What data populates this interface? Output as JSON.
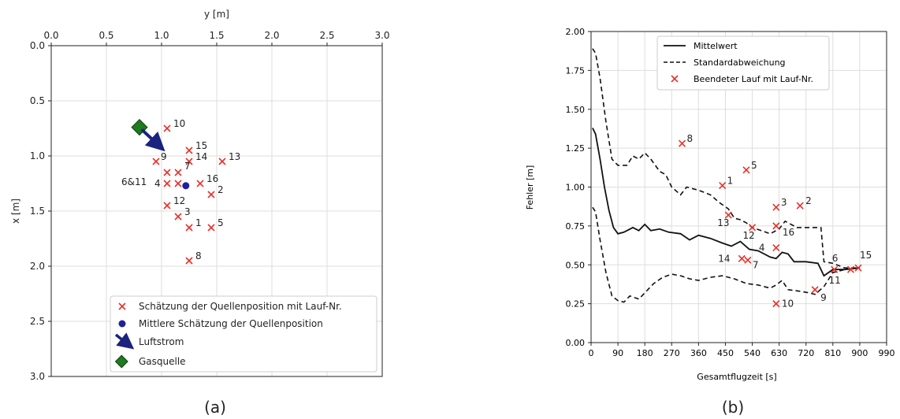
{
  "captions": {
    "a": "(a)",
    "b": "(b)"
  },
  "colors": {
    "marker": "#e8312a",
    "mean_estimate": "#1f1fa0",
    "airflow": "#1a237e",
    "gas_source": "#1e7b1e",
    "line": "#111111",
    "grid": "#dddddd"
  },
  "chart_data": [
    {
      "type": "scatter",
      "xlabel": "y [m]",
      "ylabel": "x [m]",
      "xlim": [
        0,
        3.0
      ],
      "ylim": [
        3.0,
        0.0
      ],
      "x_axis_position": "top",
      "y_axis_inverted": true,
      "xticks": [
        "0.0",
        "0.5",
        "1.0",
        "1.5",
        "2.0",
        "2.5",
        "3.0"
      ],
      "yticks": [
        "0.0",
        "0.5",
        "1.0",
        "1.5",
        "2.0",
        "2.5",
        "3.0"
      ],
      "grid": true,
      "legend_position": "bottom-right",
      "legend": [
        {
          "label": "Schätzung der Quellenposition mit Lauf-Nr.",
          "marker": "x"
        },
        {
          "label": "Mittlere Schätzung der Quellenposition",
          "marker": "circle"
        },
        {
          "label": "Luftstrom",
          "marker": "arrow"
        },
        {
          "label": "Gasquelle",
          "marker": "diamond"
        }
      ],
      "estimates": [
        {
          "label": "10",
          "y": 1.05,
          "x": 0.75
        },
        {
          "label": "15",
          "y": 1.25,
          "x": 0.95
        },
        {
          "label": "9",
          "y": 0.95,
          "x": 1.05
        },
        {
          "label": "14",
          "y": 1.25,
          "x": 1.05
        },
        {
          "label": "13",
          "y": 1.55,
          "x": 1.05
        },
        {
          "label": "7",
          "y": 1.15,
          "x": 1.15
        },
        {
          "label": "",
          "y": 1.05,
          "x": 1.15
        },
        {
          "label": "4",
          "y": 1.15,
          "x": 1.25
        },
        {
          "label": "16",
          "y": 1.35,
          "x": 1.25
        },
        {
          "label": "6&11",
          "y": 1.05,
          "x": 1.25
        },
        {
          "label": "2",
          "y": 1.45,
          "x": 1.35
        },
        {
          "label": "12",
          "y": 1.05,
          "x": 1.45
        },
        {
          "label": "3",
          "y": 1.15,
          "x": 1.55
        },
        {
          "label": "1",
          "y": 1.25,
          "x": 1.65
        },
        {
          "label": "5",
          "y": 1.45,
          "x": 1.65
        },
        {
          "label": "8",
          "y": 1.25,
          "x": 1.95
        }
      ],
      "mean_estimate": {
        "y": 1.22,
        "x": 1.27
      },
      "gas_source": {
        "y": 0.8,
        "x": 0.74
      },
      "airflow": {
        "from": {
          "y": 0.82,
          "x": 0.76
        },
        "to": {
          "y": 0.97,
          "x": 0.9
        }
      }
    },
    {
      "type": "line",
      "xlabel": "Gesamtflugzeit [s]",
      "ylabel": "Fehler [m]",
      "xlim": [
        0,
        990
      ],
      "ylim": [
        0,
        2.0
      ],
      "xticks": [
        "0",
        "90",
        "180",
        "270",
        "360",
        "450",
        "540",
        "630",
        "720",
        "810",
        "900",
        "990"
      ],
      "yticks": [
        "0.00",
        "0.25",
        "0.50",
        "0.75",
        "1.00",
        "1.25",
        "1.50",
        "1.75",
        "2.00"
      ],
      "grid": true,
      "legend_position": "top-left",
      "series": [
        {
          "name": "Mittelwert",
          "style": "solid",
          "points": [
            [
              5,
              1.38
            ],
            [
              15,
              1.34
            ],
            [
              30,
              1.18
            ],
            [
              45,
              1.0
            ],
            [
              60,
              0.85
            ],
            [
              75,
              0.74
            ],
            [
              90,
              0.7
            ],
            [
              110,
              0.71
            ],
            [
              140,
              0.74
            ],
            [
              160,
              0.72
            ],
            [
              180,
              0.76
            ],
            [
              200,
              0.72
            ],
            [
              230,
              0.73
            ],
            [
              260,
              0.71
            ],
            [
              300,
              0.7
            ],
            [
              330,
              0.66
            ],
            [
              360,
              0.69
            ],
            [
              400,
              0.67
            ],
            [
              440,
              0.64
            ],
            [
              470,
              0.62
            ],
            [
              500,
              0.65
            ],
            [
              530,
              0.6
            ],
            [
              560,
              0.59
            ],
            [
              600,
              0.55
            ],
            [
              620,
              0.54
            ],
            [
              640,
              0.58
            ],
            [
              660,
              0.57
            ],
            [
              680,
              0.52
            ],
            [
              720,
              0.52
            ],
            [
              760,
              0.51
            ],
            [
              780,
              0.43
            ],
            [
              810,
              0.47
            ],
            [
              850,
              0.47
            ],
            [
              900,
              0.48
            ]
          ]
        },
        {
          "name": "Standardabweichung",
          "style": "dashed",
          "points": [
            [
              5,
              1.89
            ],
            [
              15,
              1.86
            ],
            [
              30,
              1.7
            ],
            [
              50,
              1.42
            ],
            [
              70,
              1.18
            ],
            [
              90,
              1.14
            ],
            [
              120,
              1.14
            ],
            [
              140,
              1.2
            ],
            [
              160,
              1.18
            ],
            [
              180,
              1.22
            ],
            [
              200,
              1.18
            ],
            [
              230,
              1.1
            ],
            [
              250,
              1.08
            ],
            [
              270,
              1.0
            ],
            [
              300,
              0.95
            ],
            [
              320,
              1.0
            ],
            [
              360,
              0.98
            ],
            [
              400,
              0.95
            ],
            [
              430,
              0.9
            ],
            [
              460,
              0.86
            ],
            [
              480,
              0.8
            ],
            [
              500,
              0.79
            ],
            [
              520,
              0.77
            ],
            [
              540,
              0.74
            ],
            [
              570,
              0.72
            ],
            [
              600,
              0.7
            ],
            [
              630,
              0.73
            ],
            [
              650,
              0.78
            ],
            [
              670,
              0.76
            ],
            [
              690,
              0.74
            ],
            [
              770,
              0.74
            ],
            [
              780,
              0.52
            ],
            [
              810,
              0.51
            ],
            [
              850,
              0.48
            ],
            [
              900,
              0.48
            ]
          ]
        },
        {
          "name": "Standardabweichung",
          "style": "dashed",
          "points": [
            [
              5,
              0.87
            ],
            [
              15,
              0.84
            ],
            [
              30,
              0.66
            ],
            [
              50,
              0.45
            ],
            [
              70,
              0.3
            ],
            [
              90,
              0.27
            ],
            [
              110,
              0.26
            ],
            [
              130,
              0.3
            ],
            [
              160,
              0.28
            ],
            [
              180,
              0.32
            ],
            [
              210,
              0.38
            ],
            [
              240,
              0.42
            ],
            [
              270,
              0.44
            ],
            [
              300,
              0.43
            ],
            [
              330,
              0.41
            ],
            [
              360,
              0.4
            ],
            [
              400,
              0.42
            ],
            [
              440,
              0.43
            ],
            [
              480,
              0.41
            ],
            [
              520,
              0.38
            ],
            [
              560,
              0.37
            ],
            [
              600,
              0.35
            ],
            [
              620,
              0.37
            ],
            [
              640,
              0.4
            ],
            [
              660,
              0.34
            ],
            [
              700,
              0.33
            ],
            [
              730,
              0.32
            ],
            [
              750,
              0.31
            ],
            [
              780,
              0.36
            ],
            [
              810,
              0.45
            ],
            [
              850,
              0.47
            ],
            [
              900,
              0.48
            ]
          ]
        }
      ],
      "markers_legend": "Beendeter Lauf mit Lauf-Nr.",
      "runs": [
        {
          "label": "8",
          "x": 305,
          "y": 1.28
        },
        {
          "label": "5",
          "x": 520,
          "y": 1.11
        },
        {
          "label": "1",
          "x": 440,
          "y": 1.01
        },
        {
          "label": "3",
          "x": 620,
          "y": 0.87
        },
        {
          "label": "2",
          "x": 700,
          "y": 0.88
        },
        {
          "label": "13",
          "x": 460,
          "y": 0.82
        },
        {
          "label": "12",
          "x": 540,
          "y": 0.74
        },
        {
          "label": "16",
          "x": 620,
          "y": 0.75
        },
        {
          "label": "4",
          "x": 620,
          "y": 0.61
        },
        {
          "label": "14",
          "x": 505,
          "y": 0.54
        },
        {
          "label": "7",
          "x": 525,
          "y": 0.53
        },
        {
          "label": "6",
          "x": 815,
          "y": 0.47
        },
        {
          "label": "11",
          "x": 870,
          "y": 0.47
        },
        {
          "label": "15",
          "x": 895,
          "y": 0.48
        },
        {
          "label": "9",
          "x": 750,
          "y": 0.34
        },
        {
          "label": "10",
          "x": 620,
          "y": 0.25
        }
      ]
    }
  ]
}
